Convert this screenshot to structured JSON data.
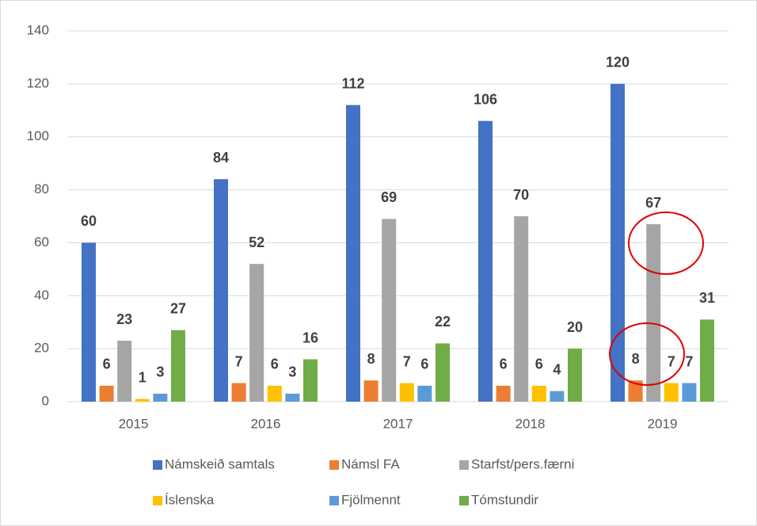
{
  "chart_data": {
    "type": "bar",
    "categories": [
      "2015",
      "2016",
      "2017",
      "2018",
      "2019"
    ],
    "series": [
      {
        "name": "Námskeið samtals",
        "color": "#4472c4",
        "values": [
          60,
          84,
          112,
          106,
          120
        ]
      },
      {
        "name": "Námsl FA",
        "color": "#ed7d31",
        "values": [
          6,
          7,
          8,
          6,
          8
        ]
      },
      {
        "name": "Starfst/pers.færni",
        "color": "#a5a5a5",
        "values": [
          23,
          52,
          69,
          70,
          67
        ]
      },
      {
        "name": "Íslenska",
        "color": "#ffc000",
        "values": [
          1,
          6,
          7,
          6,
          7
        ]
      },
      {
        "name": "Fjölmennt",
        "color": "#5b9bd5",
        "values": [
          3,
          3,
          6,
          4,
          7
        ]
      },
      {
        "name": "Tómstundir",
        "color": "#70ad47",
        "values": [
          27,
          16,
          22,
          20,
          31
        ]
      }
    ],
    "ylim": [
      0,
      140
    ],
    "yticks": [
      0,
      20,
      40,
      60,
      80,
      100,
      120,
      140
    ],
    "grid": true,
    "legend": "bottom"
  }
}
